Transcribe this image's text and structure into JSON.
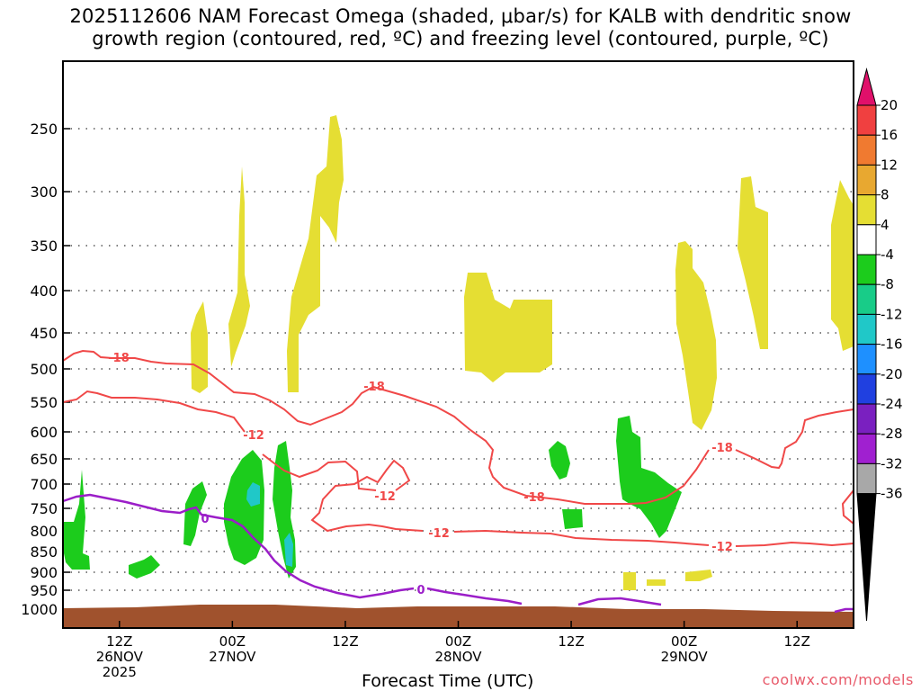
{
  "title": {
    "line1": "2025112606 NAM Forecast Omega (shaded, μbar/s) for KALB with dendritic snow",
    "line2": "growth region (contoured, red, ºC) and freezing level (contoured, purple, ºC)"
  },
  "xlabel": "Forecast Time (UTC)",
  "credit": "coolwx.com/models",
  "chart_data": {
    "type": "time-height contour",
    "variable": "Omega (μbar/s)",
    "y_axis": {
      "type": "pressure (hPa)",
      "range": [
        1000,
        200
      ],
      "ticks": [
        250,
        300,
        350,
        400,
        450,
        500,
        550,
        600,
        650,
        700,
        750,
        800,
        850,
        900,
        950,
        1000
      ],
      "grid": "dotted"
    },
    "x_axis": {
      "label": "Forecast Time (UTC)",
      "range_hours": [
        6,
        90
      ],
      "ticks": [
        {
          "hour": 12,
          "line1": "12Z",
          "line2": "26NOV",
          "line3": "2025"
        },
        {
          "hour": 24,
          "line1": "00Z",
          "line2": "27NOV",
          "line3": ""
        },
        {
          "hour": 36,
          "line1": "12Z",
          "line2": "",
          "line3": ""
        },
        {
          "hour": 48,
          "line1": "00Z",
          "line2": "28NOV",
          "line3": ""
        },
        {
          "hour": 60,
          "line1": "12Z",
          "line2": "",
          "line3": ""
        },
        {
          "hour": 72,
          "line1": "00Z",
          "line2": "29NOV",
          "line3": ""
        },
        {
          "hour": 84,
          "line1": "12Z",
          "line2": "",
          "line3": ""
        }
      ]
    },
    "colorbar": {
      "labels": [
        "20",
        "16",
        "12",
        "8",
        "4",
        "-4",
        "-8",
        "-12",
        "-16",
        "-20",
        "-24",
        "-28",
        "-32",
        "-36"
      ],
      "bins": [
        {
          "range": "16 to 20",
          "color": "#f04040"
        },
        {
          "range": "12 to 16",
          "color": "#f07a30"
        },
        {
          "range": "8 to 12",
          "color": "#e8a830"
        },
        {
          "range": "4 to 8",
          "color": "#e5de33"
        },
        {
          "range": "-4 to 4",
          "color": "#ffffff"
        },
        {
          "range": "-8 to -4",
          "color": "#1ccc1c"
        },
        {
          "range": "-12 to -8",
          "color": "#18cc88"
        },
        {
          "range": "-16 to -12",
          "color": "#20c8c8"
        },
        {
          "range": "-20 to -16",
          "color": "#1e90ff"
        },
        {
          "range": "-24 to -20",
          "color": "#2040e0"
        },
        {
          "range": "-28 to -24",
          "color": "#7a20c0"
        },
        {
          "range": "-32 to -28",
          "color": "#a020d0"
        },
        {
          "range": "-36 to -32",
          "color": "#a8a8a8"
        }
      ],
      "above_max_color": "#e0106a",
      "below_min_color": "#000000"
    },
    "contour_labels": {
      "dgz": [
        "-18",
        "-18",
        "-12",
        "-12",
        "-18",
        "-18",
        "-12"
      ],
      "freezing": [
        "0",
        "0"
      ]
    },
    "colors": {
      "dgz": "#f04848",
      "freezing": "#9b1ec8",
      "terrain": "#a0522d",
      "ascent": "#1ccc1c",
      "ascent_strong": "#20c8c8",
      "descent": "#e5de33"
    }
  }
}
